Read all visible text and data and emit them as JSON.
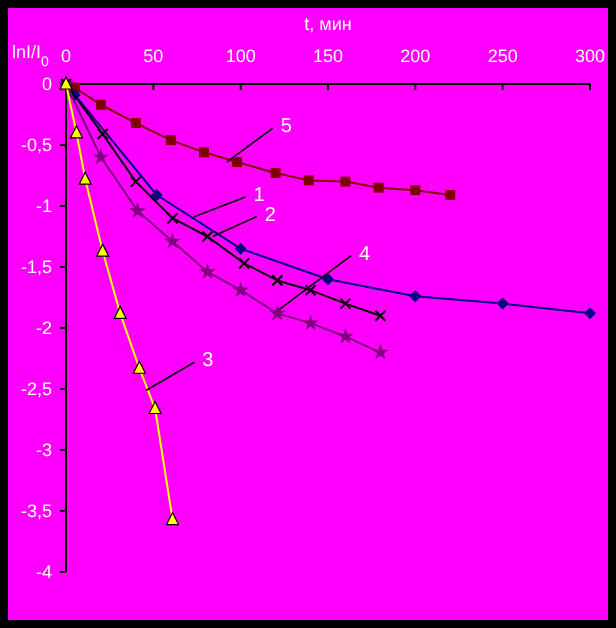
{
  "chart_data": {
    "type": "line",
    "xlabel": "t, мин",
    "ylabel": "lnI/I$_{0}$",
    "xlim": [
      0,
      300
    ],
    "xticks": [
      0,
      50,
      100,
      150,
      200,
      250,
      300
    ],
    "ylim": [
      -4,
      0
    ],
    "yticks": [
      {
        "value": -4,
        "label": "-4"
      },
      {
        "value": -3.5,
        "label": "-3,5"
      },
      {
        "value": -3,
        "label": "-3"
      },
      {
        "value": -2.5,
        "label": "-2,5"
      },
      {
        "value": -2,
        "label": "-2"
      },
      {
        "value": -1.5,
        "label": "-1,5"
      },
      {
        "value": -1,
        "label": "-1"
      },
      {
        "value": -0.5,
        "label": "-0,5"
      },
      {
        "value": 0,
        "label": "0"
      }
    ],
    "grid": false,
    "series": [
      {
        "color": "#800000",
        "marker": "square",
        "x": [
          0,
          5,
          20,
          40,
          60,
          79,
          98,
          120,
          139,
          160,
          179,
          200,
          220
        ],
        "values": [
          0,
          -0.03,
          -0.17,
          -0.32,
          -0.46,
          -0.56,
          -0.64,
          -0.73,
          -0.79,
          -0.8,
          -0.85,
          -0.87,
          -0.91
        ]
      },
      {
        "color": "#000080",
        "marker": "diamond",
        "x": [
          0,
          5,
          52,
          100,
          150,
          200,
          250,
          300
        ],
        "values": [
          0,
          -0.09,
          -0.91,
          -1.35,
          -1.6,
          -1.74,
          -1.8,
          -1.88
        ]
      },
      {
        "color": "#000000",
        "marker": "cross",
        "x": [
          0,
          21,
          40,
          61,
          81,
          102,
          121,
          140,
          160,
          180
        ],
        "values": [
          0,
          -0.41,
          -0.8,
          -1.1,
          -1.25,
          -1.47,
          -1.61,
          -1.69,
          -1.8,
          -1.9
        ]
      },
      {
        "color": "#800080",
        "marker": "star",
        "x": [
          0,
          20,
          41,
          61,
          81,
          100,
          121,
          140,
          160,
          180
        ],
        "values": [
          0,
          -0.6,
          -1.04,
          -1.29,
          -1.54,
          -1.69,
          -1.88,
          -1.96,
          -2.07,
          -2.2
        ]
      },
      {
        "color": "#ffff00",
        "marker": "triangle",
        "x": [
          0,
          6,
          11,
          21,
          31,
          42,
          51,
          61
        ],
        "values": [
          0,
          -0.4,
          -0.78,
          -1.37,
          -1.88,
          -2.33,
          -2.66,
          -3.57
        ]
      }
    ],
    "annotations": [
      {
        "text": "5",
        "x": 92,
        "y": -0.64
      },
      {
        "text": "1",
        "x": 73,
        "y": -1.09
      },
      {
        "text": "2",
        "x": 84,
        "y": -1.25
      },
      {
        "text": "4",
        "x": 122,
        "y": -1.85
      },
      {
        "text": "3",
        "x": 46,
        "y": -2.51
      }
    ]
  }
}
